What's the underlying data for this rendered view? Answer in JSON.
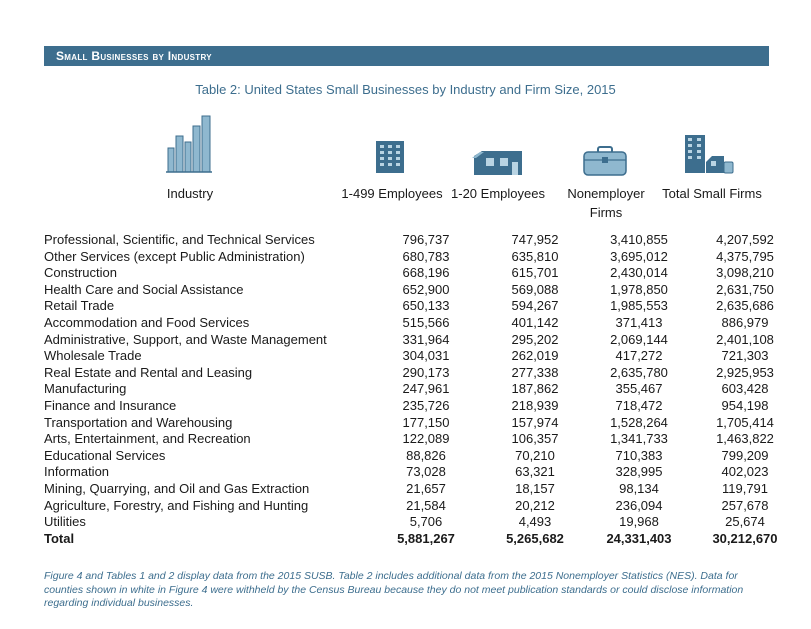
{
  "section_title": "Small Businesses by Industry",
  "table_title": "Table 2: United States Small Businesses by Industry and Firm Size, 2015",
  "headers": {
    "industry": "Industry",
    "col1": "1-499 Employees",
    "col2": "1-20 Employees",
    "col3_line1": "Nonemployer",
    "col3_line2": "Firms",
    "col4": "Total Small Firms"
  },
  "icons": [
    "city-skyline-icon",
    "office-building-icon",
    "storefront-icon",
    "briefcase-icon",
    "buildings-icon"
  ],
  "accent_color": "#3d6e8e",
  "rows": [
    {
      "industry": "Professional, Scientific, and Technical Services",
      "c1": "796,737",
      "c2": "747,952",
      "c3": "3,410,855",
      "c4": "4,207,592"
    },
    {
      "industry": "Other Services (except Public Administration)",
      "c1": "680,783",
      "c2": "635,810",
      "c3": "3,695,012",
      "c4": "4,375,795"
    },
    {
      "industry": "Construction",
      "c1": "668,196",
      "c2": "615,701",
      "c3": "2,430,014",
      "c4": "3,098,210"
    },
    {
      "industry": "Health Care and Social Assistance",
      "c1": "652,900",
      "c2": "569,088",
      "c3": "1,978,850",
      "c4": "2,631,750"
    },
    {
      "industry": "Retail Trade",
      "c1": "650,133",
      "c2": "594,267",
      "c3": "1,985,553",
      "c4": "2,635,686"
    },
    {
      "industry": "Accommodation and Food Services",
      "c1": "515,566",
      "c2": "401,142",
      "c3": "371,413",
      "c4": "886,979"
    },
    {
      "industry": "Administrative, Support, and Waste Management",
      "c1": "331,964",
      "c2": "295,202",
      "c3": "2,069,144",
      "c4": "2,401,108"
    },
    {
      "industry": "Wholesale Trade",
      "c1": "304,031",
      "c2": "262,019",
      "c3": "417,272",
      "c4": "721,303"
    },
    {
      "industry": "Real Estate and Rental and Leasing",
      "c1": "290,173",
      "c2": "277,338",
      "c3": "2,635,780",
      "c4": "2,925,953"
    },
    {
      "industry": "Manufacturing",
      "c1": "247,961",
      "c2": "187,862",
      "c3": "355,467",
      "c4": "603,428"
    },
    {
      "industry": "Finance and Insurance",
      "c1": "235,726",
      "c2": "218,939",
      "c3": "718,472",
      "c4": "954,198"
    },
    {
      "industry": "Transportation and Warehousing",
      "c1": "177,150",
      "c2": "157,974",
      "c3": "1,528,264",
      "c4": "1,705,414"
    },
    {
      "industry": "Arts, Entertainment, and Recreation",
      "c1": "122,089",
      "c2": "106,357",
      "c3": "1,341,733",
      "c4": "1,463,822"
    },
    {
      "industry": "Educational Services",
      "c1": "88,826",
      "c2": "70,210",
      "c3": "710,383",
      "c4": "799,209"
    },
    {
      "industry": "Information",
      "c1": "73,028",
      "c2": "63,321",
      "c3": "328,995",
      "c4": "402,023"
    },
    {
      "industry": "Mining, Quarrying, and Oil and Gas Extraction",
      "c1": "21,657",
      "c2": "18,157",
      "c3": "98,134",
      "c4": "119,791"
    },
    {
      "industry": "Agriculture, Forestry, and Fishing and Hunting",
      "c1": "21,584",
      "c2": "20,212",
      "c3": "236,094",
      "c4": "257,678"
    },
    {
      "industry": "Utilities",
      "c1": "5,706",
      "c2": "4,493",
      "c3": "19,968",
      "c4": "25,674"
    }
  ],
  "total": {
    "label": "Total",
    "c1": "5,881,267",
    "c2": "5,265,682",
    "c3": "24,331,403",
    "c4": "30,212,670"
  },
  "footnote": "Figure 4 and Tables 1 and 2 display data from the 2015 SUSB. Table 2 includes additional data from the 2015 Nonemployer Statistics (NES). Data for counties shown in white in Figure 4 were withheld by the Census Bureau because they do not meet publication standards or could disclose information regarding individual businesses."
}
